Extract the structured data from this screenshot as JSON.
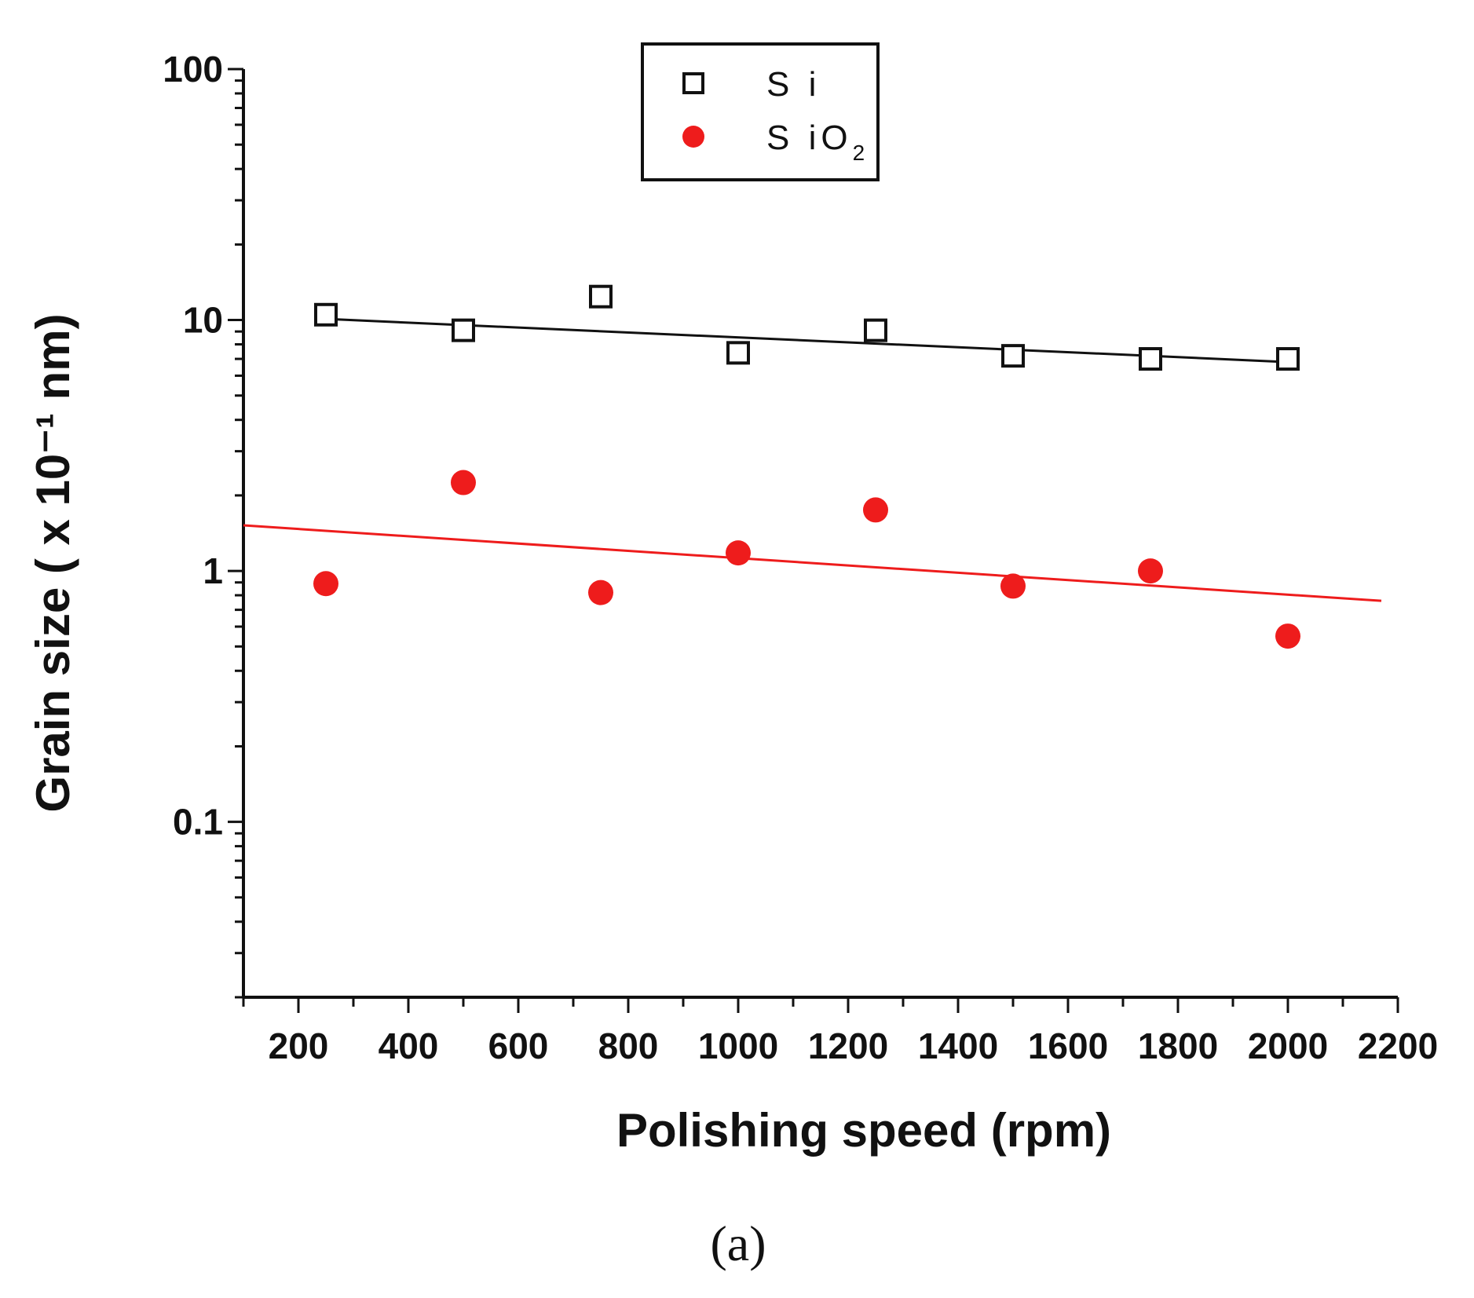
{
  "chart_data": {
    "type": "scatter",
    "title": "",
    "xlabel": "Polishing speed (rpm)",
    "ylabel": "Grain size ( x 10⁻¹ nm)",
    "xscale": "linear",
    "yscale": "log",
    "xlim": [
      100,
      2200
    ],
    "ylim": [
      0.02,
      100
    ],
    "xticks": [
      200,
      400,
      600,
      800,
      1000,
      1200,
      1400,
      1600,
      1800,
      2000,
      2200
    ],
    "xtick_labels": [
      "200",
      "400",
      "600",
      "800",
      "1000",
      "1200",
      "1400",
      "1600",
      "1800",
      "2000",
      "2200"
    ],
    "yticks": [
      0.1,
      1,
      10,
      100
    ],
    "ytick_labels": [
      "0.1",
      "1",
      "10",
      "100"
    ],
    "legend_position": "top-center",
    "series": [
      {
        "name": "Si",
        "legend_label": "S i",
        "marker": "open-square",
        "color": "#111111",
        "x": [
          250,
          500,
          750,
          1000,
          1250,
          1500,
          1750,
          2000
        ],
        "y": [
          10.5,
          9.1,
          12.4,
          7.4,
          9.1,
          7.2,
          7.0,
          7.0
        ],
        "fit": {
          "x": [
            250,
            2000
          ],
          "y": [
            10.1,
            6.8
          ]
        }
      },
      {
        "name": "SiO2",
        "legend_label": "S iO",
        "legend_sub": "2",
        "marker": "filled-circle",
        "color": "#ee1c1c",
        "x": [
          250,
          500,
          750,
          1000,
          1250,
          1500,
          1750,
          2000
        ],
        "y": [
          0.89,
          2.25,
          0.82,
          1.18,
          1.75,
          0.87,
          1.0,
          0.55
        ],
        "fit": {
          "x": [
            100,
            2170
          ],
          "y": [
            1.52,
            0.76
          ]
        }
      }
    ],
    "caption": "(a)"
  }
}
